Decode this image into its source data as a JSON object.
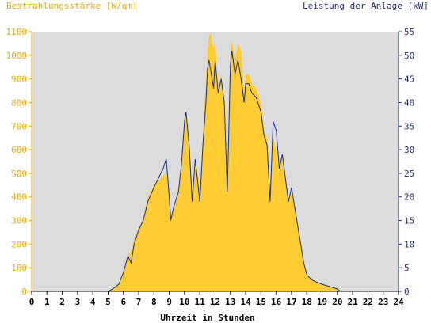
{
  "chart_data": {
    "type": "area",
    "left_axis_label": "Bestrahlungsstärke [W/qm]",
    "right_axis_label": "Leistung der Anlage [kW]",
    "xlabel": "Uhrzeit in Stunden",
    "x_range": [
      0,
      24
    ],
    "left_ylim": [
      0,
      1100
    ],
    "right_ylim": [
      0,
      55
    ],
    "grid": false,
    "x_ticks": [
      "0",
      "1",
      "2",
      "3",
      "4",
      "5",
      "6",
      "7",
      "8",
      "9",
      "10",
      "11",
      "12",
      "13",
      "14",
      "15",
      "16",
      "17",
      "18",
      "19",
      "20",
      "21",
      "22",
      "23",
      "24"
    ],
    "left_ticks": [
      "0",
      "100",
      "200",
      "300",
      "400",
      "500",
      "600",
      "700",
      "800",
      "900",
      "1000",
      "1100"
    ],
    "right_ticks": [
      "0",
      "5",
      "10",
      "15",
      "20",
      "25",
      "30",
      "35",
      "40",
      "45",
      "50",
      "55"
    ],
    "colors": {
      "plot_background": "#dcdcdc",
      "irradiance_fill": "#ffcc33",
      "power_line": "#1a2f7a",
      "left_axis_text": "#e8a800",
      "right_axis_text": "#1a2f7a"
    },
    "series": [
      {
        "name": "Bestrahlungsstärke [W/qm]",
        "axis": "left",
        "style": "filled-area",
        "x": [
          0,
          5.0,
          5.3,
          5.7,
          6.0,
          6.3,
          6.5,
          6.7,
          7.0,
          7.3,
          7.6,
          8.0,
          8.3,
          8.6,
          8.8,
          9.0,
          9.1,
          9.3,
          9.6,
          9.8,
          10.0,
          10.1,
          10.3,
          10.5,
          10.7,
          10.9,
          11.0,
          11.2,
          11.4,
          11.5,
          11.6,
          11.7,
          11.9,
          12.0,
          12.2,
          12.4,
          12.6,
          12.8,
          13.0,
          13.1,
          13.3,
          13.5,
          13.7,
          13.9,
          14.0,
          14.2,
          14.4,
          14.7,
          15.0,
          15.2,
          15.4,
          15.6,
          15.8,
          16.0,
          16.2,
          16.4,
          16.6,
          16.8,
          17.0,
          17.2,
          17.5,
          17.8,
          18.0,
          18.3,
          18.6,
          19.0,
          19.5,
          20.0,
          20.2,
          24
        ],
        "y": [
          0,
          0,
          10,
          35,
          80,
          150,
          170,
          220,
          270,
          310,
          400,
          450,
          470,
          490,
          500,
          400,
          300,
          350,
          410,
          560,
          710,
          740,
          620,
          380,
          560,
          480,
          410,
          650,
          880,
          1020,
          1080,
          1100,
          1020,
          1070,
          850,
          920,
          820,
          410,
          1000,
          1060,
          980,
          1050,
          1020,
          840,
          920,
          920,
          880,
          860,
          800,
          680,
          650,
          380,
          650,
          600,
          510,
          580,
          480,
          380,
          420,
          360,
          230,
          120,
          70,
          50,
          40,
          30,
          20,
          10,
          0,
          0
        ]
      },
      {
        "name": "Leistung der Anlage [kW]",
        "axis": "right",
        "style": "line",
        "x": [
          0,
          5.0,
          5.3,
          5.7,
          6.0,
          6.3,
          6.5,
          6.7,
          7.0,
          7.3,
          7.6,
          8.0,
          8.3,
          8.6,
          8.8,
          9.0,
          9.1,
          9.3,
          9.6,
          9.8,
          10.0,
          10.1,
          10.3,
          10.5,
          10.7,
          10.9,
          11.0,
          11.2,
          11.4,
          11.5,
          11.6,
          11.7,
          11.9,
          12.0,
          12.2,
          12.4,
          12.6,
          12.8,
          13.0,
          13.1,
          13.3,
          13.5,
          13.7,
          13.9,
          14.0,
          14.2,
          14.4,
          14.7,
          15.0,
          15.2,
          15.4,
          15.6,
          15.8,
          16.0,
          16.2,
          16.4,
          16.6,
          16.8,
          17.0,
          17.2,
          17.5,
          17.8,
          18.0,
          18.3,
          18.6,
          19.0,
          19.5,
          20.0,
          20.2,
          24
        ],
        "y": [
          0,
          0,
          0.5,
          1.5,
          4,
          7.5,
          6,
          10,
          13,
          15,
          19,
          22,
          24,
          26,
          28,
          20,
          15,
          18,
          21,
          27,
          36,
          38,
          31,
          19,
          28,
          22,
          19,
          31,
          40,
          47,
          49,
          47,
          43,
          49,
          42,
          45,
          40,
          21,
          48,
          51,
          46,
          49,
          45,
          40,
          44,
          44,
          42,
          41,
          38,
          33,
          31,
          19,
          36,
          34,
          26,
          29,
          24,
          19,
          22,
          18,
          12,
          6,
          3.5,
          2.5,
          2,
          1.5,
          1,
          0.5,
          0,
          0
        ]
      }
    ]
  }
}
